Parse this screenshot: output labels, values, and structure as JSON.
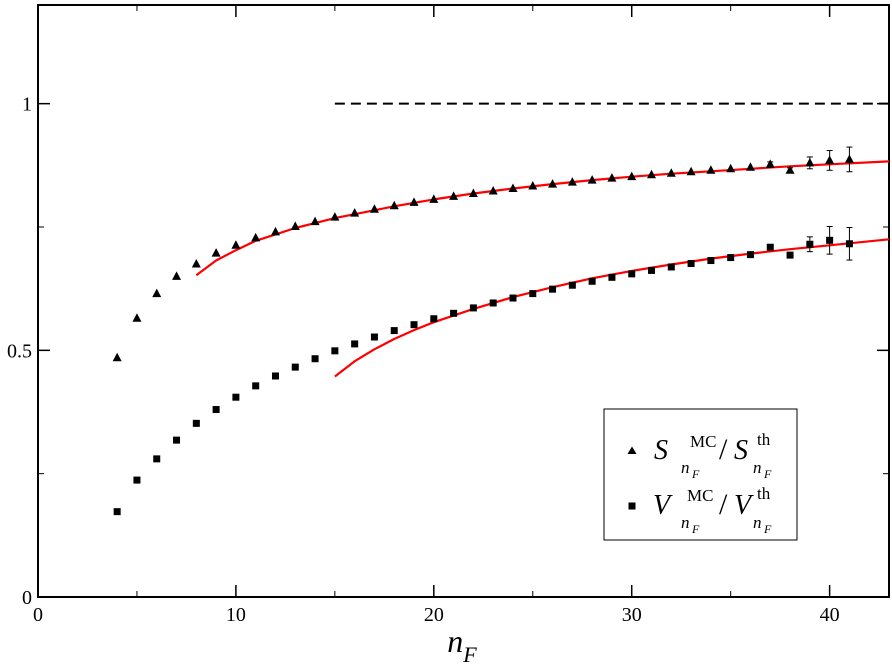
{
  "chart_data": {
    "type": "scatter",
    "xlabel": "n",
    "xlabel_sub": "F",
    "ylabel": "",
    "xlim": [
      0,
      43
    ],
    "ylim": [
      0,
      1.2
    ],
    "x_ticks": [
      0,
      10,
      20,
      30,
      40
    ],
    "y_ticks": [
      0,
      0.5,
      1
    ],
    "x_tick_labels": [
      "0",
      "10",
      "20",
      "30",
      "40"
    ],
    "y_tick_labels": [
      "0",
      "0.5",
      "1"
    ],
    "grid": false,
    "legend_position": "lower-right",
    "series": [
      {
        "marker": "triangle",
        "color": "#000000",
        "legend": {
          "main": "S",
          "sup1": "MC",
          "sup2": "th",
          "sub": "n",
          "subsub": "F"
        },
        "x": [
          4,
          5,
          6,
          7,
          8,
          9,
          10,
          11,
          12,
          13,
          14,
          15,
          16,
          17,
          18,
          19,
          20,
          21,
          22,
          23,
          24,
          25,
          26,
          27,
          28,
          29,
          30,
          31,
          32,
          33,
          34,
          35,
          36,
          37,
          38,
          39,
          40,
          41
        ],
        "y": [
          0.485,
          0.565,
          0.615,
          0.65,
          0.675,
          0.697,
          0.713,
          0.728,
          0.74,
          0.751,
          0.761,
          0.77,
          0.778,
          0.786,
          0.793,
          0.8,
          0.806,
          0.812,
          0.818,
          0.823,
          0.828,
          0.833,
          0.837,
          0.841,
          0.845,
          0.849,
          0.852,
          0.856,
          0.859,
          0.862,
          0.865,
          0.868,
          0.871,
          0.877,
          0.865,
          0.88,
          0.885,
          0.887
        ],
        "error": [
          0,
          0,
          0,
          0,
          0,
          0,
          0,
          0,
          0,
          0,
          0,
          0,
          0,
          0,
          0,
          0,
          0,
          0,
          0,
          0,
          0,
          0,
          0,
          0,
          0,
          0,
          0,
          0,
          0,
          0,
          0,
          0,
          0,
          0.005,
          0.005,
          0.012,
          0.02,
          0.025
        ]
      },
      {
        "marker": "square",
        "color": "#000000",
        "legend": {
          "main": "V",
          "sup1": "MC",
          "sup2": "th",
          "sub": "n",
          "subsub": "F"
        },
        "x": [
          4,
          5,
          6,
          7,
          8,
          9,
          10,
          11,
          12,
          13,
          14,
          15,
          16,
          17,
          18,
          19,
          20,
          21,
          22,
          23,
          24,
          25,
          26,
          27,
          28,
          29,
          30,
          31,
          32,
          33,
          34,
          35,
          36,
          37,
          38,
          39,
          40,
          41
        ],
        "y": [
          0.173,
          0.237,
          0.28,
          0.318,
          0.352,
          0.38,
          0.405,
          0.428,
          0.448,
          0.466,
          0.483,
          0.499,
          0.513,
          0.527,
          0.54,
          0.552,
          0.564,
          0.575,
          0.586,
          0.596,
          0.606,
          0.615,
          0.624,
          0.632,
          0.64,
          0.648,
          0.655,
          0.662,
          0.669,
          0.676,
          0.682,
          0.688,
          0.694,
          0.709,
          0.693,
          0.715,
          0.723,
          0.716
        ],
        "error": [
          0,
          0,
          0,
          0,
          0,
          0,
          0,
          0,
          0,
          0,
          0,
          0,
          0,
          0,
          0,
          0,
          0,
          0,
          0,
          0,
          0,
          0,
          0,
          0,
          0,
          0,
          0,
          0,
          0,
          0,
          0,
          0,
          0,
          0.005,
          0.005,
          0.015,
          0.028,
          0.033
        ]
      }
    ],
    "curves": [
      {
        "color": "#ff0000",
        "x": [
          8,
          9,
          10,
          11,
          12,
          13,
          14,
          15,
          16,
          18,
          20,
          22,
          24,
          26,
          28,
          30,
          32,
          34,
          36,
          38,
          40,
          43
        ],
        "y": [
          0.652,
          0.682,
          0.703,
          0.722,
          0.735,
          0.748,
          0.758,
          0.768,
          0.776,
          0.792,
          0.806,
          0.818,
          0.828,
          0.837,
          0.845,
          0.852,
          0.858,
          0.863,
          0.868,
          0.873,
          0.877,
          0.883
        ]
      },
      {
        "color": "#ff0000",
        "x": [
          15,
          16,
          17,
          18,
          19,
          20,
          22,
          24,
          26,
          28,
          30,
          32,
          34,
          36,
          38,
          40,
          43
        ],
        "y": [
          0.447,
          0.478,
          0.502,
          0.523,
          0.541,
          0.557,
          0.584,
          0.608,
          0.628,
          0.646,
          0.661,
          0.674,
          0.686,
          0.696,
          0.705,
          0.713,
          0.725
        ]
      }
    ],
    "reference_line": {
      "y": 1,
      "x_start": 15,
      "x_end": 43,
      "style": "dashed",
      "color": "#000000"
    }
  }
}
